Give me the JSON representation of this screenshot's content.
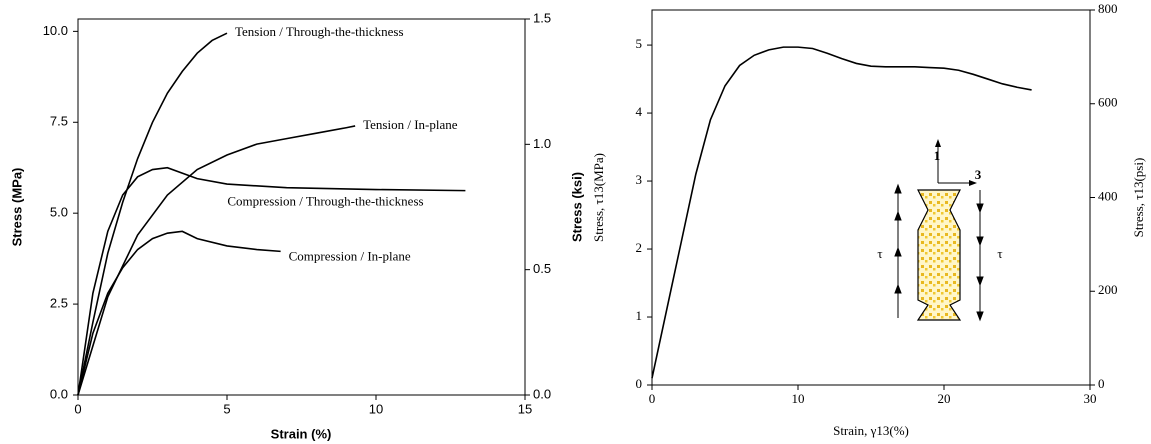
{
  "chart_data": [
    {
      "type": "line",
      "x_label": "Strain (%)",
      "y_label": "Stress (MPa)",
      "y2_label": "Stress (ksi)",
      "xlim": [
        0,
        15
      ],
      "ylim": [
        0,
        10.34
      ],
      "y2lim": [
        0,
        1.5
      ],
      "xticks": [
        0,
        5,
        10,
        15
      ],
      "yticks": [
        {
          "value": 0,
          "label": "0.0"
        },
        {
          "value": 2.5,
          "label": "2.5"
        },
        {
          "value": 5,
          "label": "5.0"
        },
        {
          "value": 7.5,
          "label": "7.5"
        },
        {
          "value": 10,
          "label": "10.0"
        }
      ],
      "y2ticks": [
        {
          "value": 0,
          "label": "0.0"
        },
        {
          "value": 0.5,
          "label": "0.5"
        },
        {
          "value": 1,
          "label": "1.0"
        },
        {
          "value": 1.5,
          "label": "1.5"
        }
      ],
      "series": [
        {
          "name": "Tension / Through-the-thickness",
          "color": "#000000",
          "x": [
            0,
            0.5,
            1,
            1.5,
            2,
            2.5,
            3,
            3.5,
            4,
            4.5,
            5
          ],
          "values": [
            0,
            2.0,
            3.9,
            5.3,
            6.5,
            7.5,
            8.3,
            8.9,
            9.4,
            9.75,
            9.95
          ]
        },
        {
          "name": "Tension / In-plane",
          "color": "#000000",
          "x": [
            0,
            1,
            2,
            3,
            4,
            5,
            6,
            7,
            8,
            9,
            9.3
          ],
          "values": [
            0,
            2.7,
            4.4,
            5.5,
            6.2,
            6.6,
            6.9,
            7.05,
            7.2,
            7.35,
            7.4
          ]
        },
        {
          "name": "Compression / Through-the-thickness",
          "color": "#000000",
          "x": [
            0,
            0.5,
            1,
            1.5,
            2,
            2.5,
            3,
            4,
            5,
            7,
            10,
            13
          ],
          "values": [
            0,
            2.8,
            4.5,
            5.5,
            6.0,
            6.2,
            6.25,
            5.95,
            5.8,
            5.7,
            5.65,
            5.62
          ]
        },
        {
          "name": "Compression / In-plane",
          "color": "#000000",
          "x": [
            0,
            0.5,
            1,
            1.5,
            2,
            2.5,
            3,
            3.5,
            4,
            5,
            6,
            6.8
          ],
          "values": [
            0,
            1.7,
            2.8,
            3.5,
            4.0,
            4.3,
            4.45,
            4.5,
            4.3,
            4.1,
            4.0,
            3.95
          ]
        }
      ]
    },
    {
      "type": "line",
      "x_label": "Strain, γ13(%)",
      "y_label": "Stress, τ13(MPa)",
      "y2_label": "Stress, τ13(psi)",
      "xlim": [
        0,
        30
      ],
      "ylim": [
        0,
        5.516
      ],
      "y2lim": [
        0,
        800
      ],
      "xticks": [
        0,
        10,
        20,
        30
      ],
      "yticks": [
        0,
        1,
        2,
        3,
        4,
        5
      ],
      "y2ticks": [
        0,
        200,
        400,
        600,
        800
      ],
      "annotations": [
        "1",
        "3",
        "τ",
        "τ"
      ],
      "series": [
        {
          "color": "#000000",
          "x": [
            0,
            0.5,
            1,
            2,
            3,
            4,
            5,
            6,
            7,
            8,
            9,
            10,
            11,
            12,
            13,
            14,
            15,
            16,
            17,
            18,
            19,
            20,
            21,
            22,
            23,
            24,
            25,
            26
          ],
          "values": [
            0.1,
            0.6,
            1.1,
            2.1,
            3.1,
            3.9,
            4.4,
            4.7,
            4.85,
            4.93,
            4.97,
            4.97,
            4.95,
            4.88,
            4.8,
            4.73,
            4.69,
            4.68,
            4.68,
            4.68,
            4.67,
            4.66,
            4.63,
            4.57,
            4.5,
            4.43,
            4.38,
            4.34
          ]
        }
      ]
    }
  ]
}
